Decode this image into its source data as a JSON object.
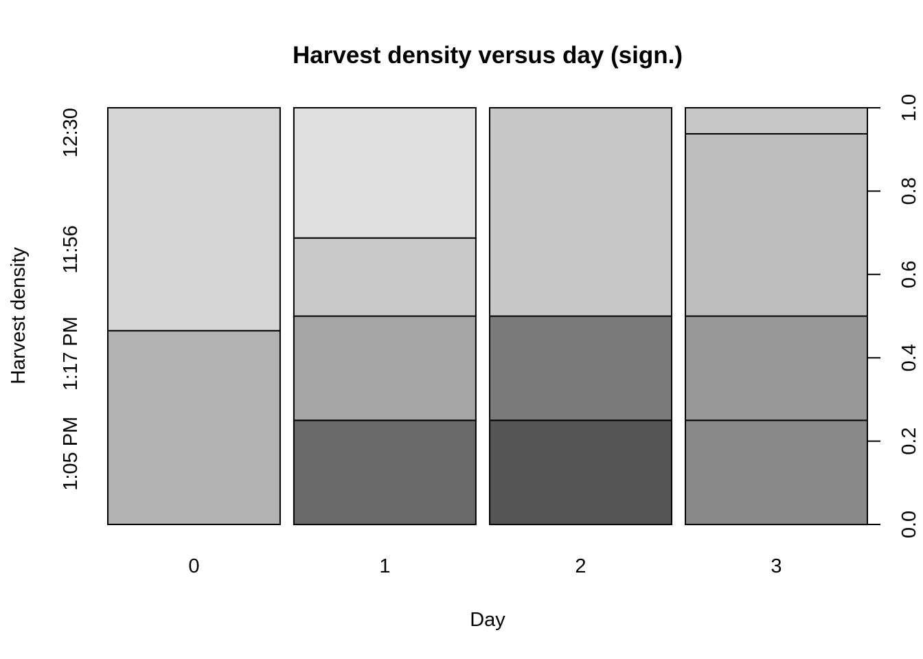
{
  "chart_data": {
    "type": "spineplot",
    "title": "Harvest density versus day (sign.)",
    "xlabel": "Day",
    "ylabel": "Harvest density",
    "categories": [
      "0",
      "1",
      "2",
      "3"
    ],
    "category_widths": [
      0.2086,
      0.2203,
      0.2203,
      0.2203
    ],
    "levels": [
      "1:05 PM",
      "1:17 PM",
      "11:56",
      "12:30"
    ],
    "proportions": [
      [
        0.465,
        0.0,
        0.0,
        0.535
      ],
      [
        0.25,
        0.25,
        0.1875,
        0.3125
      ],
      [
        0.25,
        0.25,
        0.5,
        0.0
      ],
      [
        0.25,
        0.25,
        0.4375,
        0.0625
      ]
    ],
    "colors": [
      [
        "#b2b2b2",
        "#b2b2b2",
        "#d6d6d6",
        "#d6d6d6"
      ],
      [
        "#696969",
        "#a5a5a5",
        "#c9c9c9",
        "#e0e0e0"
      ],
      [
        "#555555",
        "#7a7a7a",
        "#c8c8c8",
        "#c8c8c8"
      ],
      [
        "#898989",
        "#989898",
        "#bdbdbd",
        "#c8c8c8"
      ]
    ],
    "y_axis_right": {
      "ylim": [
        0,
        1
      ],
      "ticks": [
        "0.0",
        "0.2",
        "0.4",
        "0.6",
        "0.8",
        "1.0"
      ]
    },
    "grid": false,
    "legend": "none"
  }
}
